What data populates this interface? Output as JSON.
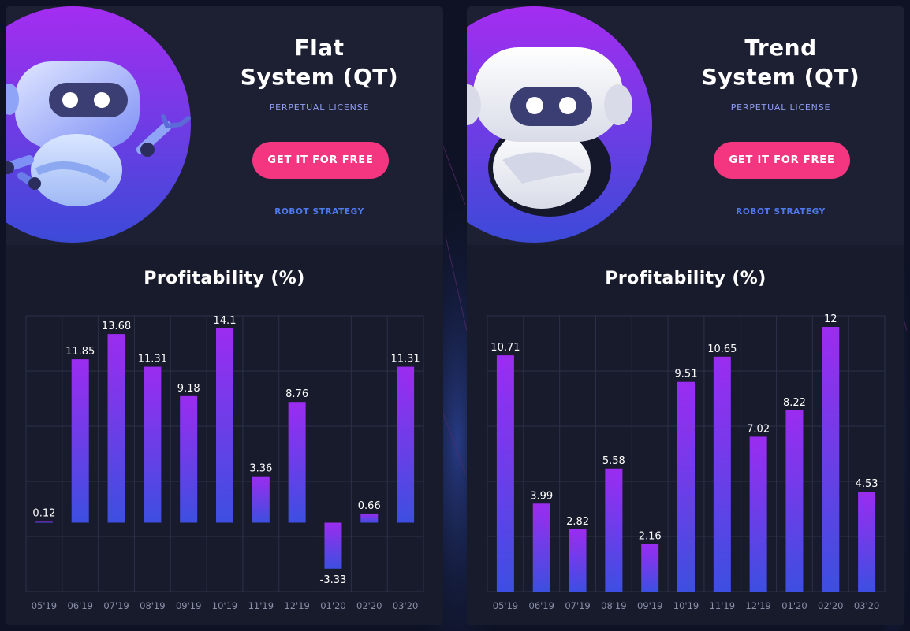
{
  "colors": {
    "page_bg": "#0e1224",
    "card_bg": "#181b2c",
    "accent_pink": "#f4357f",
    "bar_top": "#9b2cf0",
    "bar_bottom": "#3d4fe0",
    "license_text": "#8f9df0",
    "strategy_text": "#4f79ee"
  },
  "cards": [
    {
      "title_line1": "Flat",
      "title_line2": "System (QT)",
      "license": "PERPETUAL LICENSE",
      "cta": "GET IT FOR FREE",
      "strategy_link": "ROBOT STRATEGY",
      "mascot": "robot-waving-icon",
      "chart_heading": "Profitability (%)"
    },
    {
      "title_line1": "Trend",
      "title_line2": "System (QT)",
      "license": "PERPETUAL LICENSE",
      "cta": "GET IT FOR FREE",
      "strategy_link": "ROBOT STRATEGY",
      "mascot": "robot-head-icon",
      "chart_heading": "Profitability (%)"
    }
  ],
  "chart_data": [
    {
      "type": "bar",
      "title": "Profitability (%)",
      "categories": [
        "05'19",
        "06'19",
        "07'19",
        "08'19",
        "09'19",
        "10'19",
        "11'19",
        "12'19",
        "01'20",
        "02'20",
        "03'20"
      ],
      "values": [
        0.12,
        11.85,
        13.68,
        11.31,
        9.18,
        14.1,
        3.36,
        8.76,
        -3.33,
        0.66,
        11.31
      ],
      "value_labels": [
        "0.12",
        "11.85",
        "13.68",
        "11.31",
        "9.18",
        "14.1",
        "3.36",
        "8.76",
        "-3.33",
        "0.66",
        "11.31"
      ],
      "ylim": [
        -5,
        15
      ],
      "grid": true
    },
    {
      "type": "bar",
      "title": "Profitability (%)",
      "categories": [
        "05'19",
        "06'19",
        "07'19",
        "08'19",
        "09'19",
        "10'19",
        "11'19",
        "12'19",
        "01'20",
        "02'20",
        "03'20"
      ],
      "values": [
        10.71,
        3.99,
        2.82,
        5.58,
        2.16,
        9.51,
        10.65,
        7.02,
        8.22,
        12,
        4.53
      ],
      "value_labels": [
        "10.71",
        "3.99",
        "2.82",
        "5.58",
        "2.16",
        "9.51",
        "10.65",
        "7.02",
        "8.22",
        "12",
        "4.53"
      ],
      "ylim": [
        0,
        12.5
      ],
      "grid": true
    }
  ]
}
